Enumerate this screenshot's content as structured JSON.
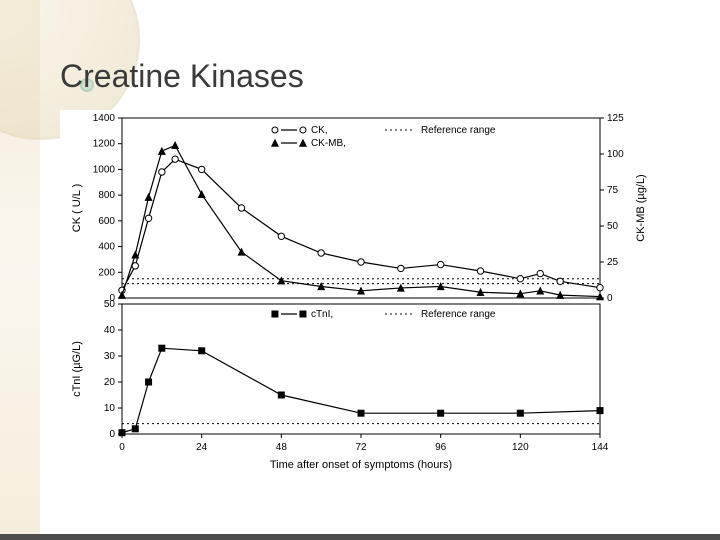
{
  "slide": {
    "title": "Creatine Kinases",
    "background_color": "#ffffff",
    "decor": {
      "arc_color": "#d9c9a3",
      "band_color": "#e8d9b5",
      "dot_color": "#bcd9c9"
    }
  },
  "figure": {
    "xaxis": {
      "label": "Time after onset of symptoms  (hours)",
      "min": 0,
      "max": 144,
      "tick_step": 24,
      "ticks": [
        0,
        24,
        48,
        72,
        96,
        120,
        144
      ],
      "label_fontsize": 11,
      "tick_fontsize": 10
    },
    "panel_top": {
      "type": "line",
      "y_left": {
        "label": "CK  ( U/L )",
        "min": 0,
        "max": 1400,
        "tick_step": 200,
        "ticks": [
          0,
          200,
          400,
          600,
          800,
          1000,
          1200,
          1400
        ]
      },
      "y_right": {
        "label": "CK-MB (µg/L)",
        "min": 0,
        "max": 125,
        "tick_step": 25,
        "ticks": [
          0,
          25,
          50,
          75,
          100,
          125
        ]
      },
      "reference_range": {
        "ck_upper": 150,
        "ckmb_upper": 10
      },
      "legend": {
        "items": [
          {
            "marker": "open-circle",
            "label": "CK,"
          },
          {
            "marker": "filled-triangle",
            "label": "CK-MB,"
          },
          {
            "marker": "dash",
            "label": "Reference range"
          }
        ]
      },
      "series_ck": {
        "marker": "open-circle",
        "marker_size": 3.2,
        "line_color": "#000000",
        "x": [
          0,
          4,
          8,
          12,
          16,
          24,
          36,
          48,
          60,
          72,
          84,
          96,
          108,
          120,
          126,
          132,
          144
        ],
        "y": [
          60,
          250,
          620,
          980,
          1080,
          1000,
          700,
          480,
          350,
          280,
          230,
          260,
          210,
          150,
          190,
          130,
          80
        ]
      },
      "series_ckmb": {
        "marker": "filled-triangle",
        "marker_size": 3.2,
        "line_color": "#000000",
        "x": [
          0,
          4,
          8,
          12,
          16,
          24,
          36,
          48,
          60,
          72,
          84,
          96,
          108,
          120,
          126,
          132,
          144
        ],
        "y_ugL": [
          2,
          30,
          70,
          102,
          106,
          72,
          32,
          12,
          8,
          5,
          7,
          8,
          4,
          3,
          5,
          2,
          1
        ]
      }
    },
    "panel_bottom": {
      "type": "line",
      "y_left": {
        "label": "cTnI  (µG/L)",
        "min": 0,
        "max": 50,
        "tick_step": 10,
        "ticks": [
          0,
          10,
          20,
          30,
          40,
          50
        ]
      },
      "reference_range": {
        "ctni_upper": 4
      },
      "legend": {
        "items": [
          {
            "marker": "filled-square",
            "label": "cTnI,"
          },
          {
            "marker": "dash",
            "label": "Reference range"
          }
        ]
      },
      "series_ctni": {
        "marker": "filled-square",
        "marker_size": 3,
        "line_color": "#000000",
        "x": [
          0,
          4,
          8,
          12,
          24,
          48,
          72,
          96,
          120,
          144
        ],
        "y": [
          0.5,
          2,
          20,
          33,
          32,
          15,
          8,
          8,
          8,
          9
        ]
      }
    },
    "colors": {
      "axis": "#000000",
      "reference_dash": "#000000",
      "background": "#ffffff"
    }
  }
}
